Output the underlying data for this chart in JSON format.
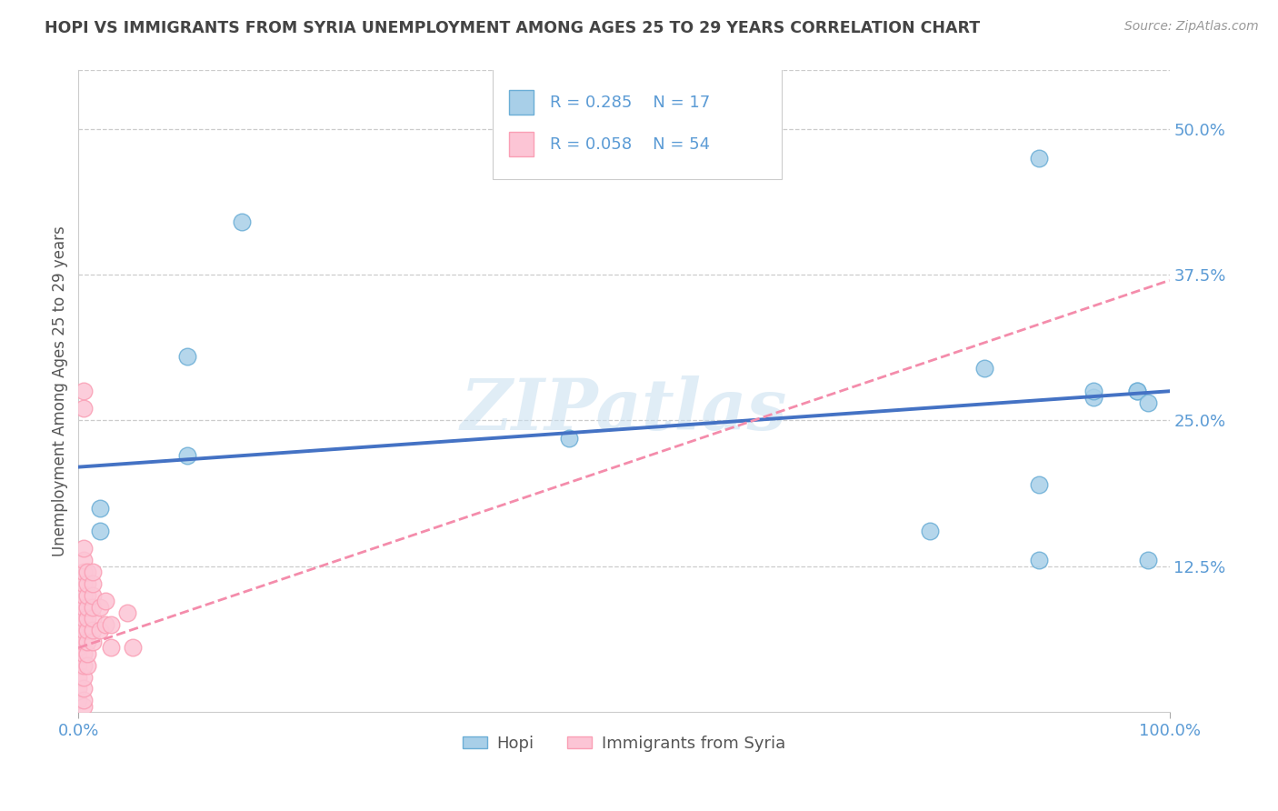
{
  "title": "HOPI VS IMMIGRANTS FROM SYRIA UNEMPLOYMENT AMONG AGES 25 TO 29 YEARS CORRELATION CHART",
  "source": "Source: ZipAtlas.com",
  "ylabel": "Unemployment Among Ages 25 to 29 years",
  "xlim": [
    0.0,
    1.0
  ],
  "ylim": [
    0.0,
    0.55
  ],
  "x_ticks": [
    0.0,
    1.0
  ],
  "x_tick_labels": [
    "0.0%",
    "100.0%"
  ],
  "y_ticks": [
    0.125,
    0.25,
    0.375,
    0.5
  ],
  "y_tick_labels": [
    "12.5%",
    "25.0%",
    "37.5%",
    "50.0%"
  ],
  "hopi_line_color": "#4472c4",
  "hopi_marker_face": "#a8cfe8",
  "hopi_marker_edge": "#6baed6",
  "syria_line_color": "#f48cab",
  "syria_marker_face": "#fcc5d5",
  "syria_marker_edge": "#fa9fb5",
  "hopi_R": 0.285,
  "hopi_N": 17,
  "syria_R": 0.058,
  "syria_N": 54,
  "hopi_line_x0": 0.0,
  "hopi_line_y0": 0.21,
  "hopi_line_x1": 1.0,
  "hopi_line_y1": 0.275,
  "syria_line_x0": 0.0,
  "syria_line_y0": 0.055,
  "syria_line_x1": 1.0,
  "syria_line_y1": 0.37,
  "hopi_scatter_x": [
    0.02,
    0.02,
    0.1,
    0.1,
    0.15,
    0.45,
    0.78,
    0.83,
    0.88,
    0.88,
    0.88,
    0.93,
    0.93,
    0.97,
    0.97,
    0.98,
    0.98
  ],
  "hopi_scatter_y": [
    0.175,
    0.155,
    0.305,
    0.22,
    0.42,
    0.235,
    0.155,
    0.295,
    0.13,
    0.195,
    0.475,
    0.27,
    0.275,
    0.275,
    0.275,
    0.265,
    0.13
  ],
  "syria_scatter_x": [
    0.0,
    0.0,
    0.0,
    0.0,
    0.0,
    0.0,
    0.0,
    0.0,
    0.0,
    0.0,
    0.0,
    0.0,
    0.0,
    0.005,
    0.005,
    0.005,
    0.005,
    0.005,
    0.005,
    0.005,
    0.005,
    0.005,
    0.005,
    0.005,
    0.005,
    0.005,
    0.005,
    0.005,
    0.005,
    0.005,
    0.008,
    0.008,
    0.008,
    0.008,
    0.008,
    0.008,
    0.008,
    0.008,
    0.008,
    0.013,
    0.013,
    0.013,
    0.013,
    0.013,
    0.013,
    0.013,
    0.02,
    0.02,
    0.025,
    0.025,
    0.03,
    0.03,
    0.045,
    0.05
  ],
  "syria_scatter_y": [
    0.01,
    0.02,
    0.03,
    0.04,
    0.05,
    0.055,
    0.06,
    0.065,
    0.07,
    0.075,
    0.08,
    0.085,
    0.09,
    0.005,
    0.01,
    0.02,
    0.03,
    0.04,
    0.05,
    0.06,
    0.07,
    0.08,
    0.09,
    0.1,
    0.11,
    0.12,
    0.13,
    0.14,
    0.26,
    0.275,
    0.04,
    0.05,
    0.06,
    0.07,
    0.08,
    0.09,
    0.1,
    0.11,
    0.12,
    0.06,
    0.07,
    0.08,
    0.09,
    0.1,
    0.11,
    0.12,
    0.07,
    0.09,
    0.075,
    0.095,
    0.055,
    0.075,
    0.085,
    0.055
  ],
  "watermark": "ZIPatlas",
  "legend_label_hopi": "Hopi",
  "legend_label_syria": "Immigrants from Syria",
  "background_color": "#ffffff",
  "grid_color": "#cccccc",
  "title_color": "#444444",
  "axis_label_color": "#5b9bd5",
  "legend_text_color": "#5b9bd5"
}
